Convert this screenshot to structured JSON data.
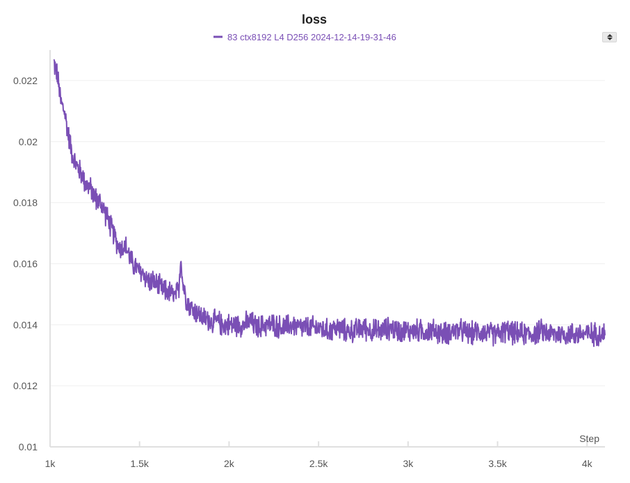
{
  "chart_data": {
    "type": "line",
    "title": "loss",
    "xlabel": "Step",
    "ylabel": "",
    "xlim": [
      1000,
      4100
    ],
    "ylim": [
      0.01,
      0.023
    ],
    "x_ticks": [
      1000,
      1500,
      2000,
      2500,
      3000,
      3500,
      4000
    ],
    "x_tick_labels": [
      "1k",
      "1.5k",
      "2k",
      "2.5k",
      "3k",
      "3.5k",
      "4k"
    ],
    "y_ticks": [
      0.01,
      0.012,
      0.014,
      0.016,
      0.018,
      0.02,
      0.022
    ],
    "y_tick_labels": [
      "0.01",
      "0.012",
      "0.014",
      "0.016",
      "0.018",
      "0.02",
      "0.022"
    ],
    "grid": true,
    "legend_position": "top-center",
    "series": [
      {
        "name": "83 ctx8192 L4 D256 2024-12-14-19-31-46",
        "color": "#7a4fb5",
        "x": [
          1020,
          1040,
          1060,
          1080,
          1100,
          1120,
          1140,
          1160,
          1180,
          1200,
          1220,
          1240,
          1260,
          1280,
          1300,
          1320,
          1340,
          1360,
          1380,
          1400,
          1420,
          1440,
          1460,
          1480,
          1500,
          1520,
          1540,
          1560,
          1580,
          1600,
          1620,
          1640,
          1660,
          1680,
          1700,
          1720,
          1730,
          1740,
          1760,
          1780,
          1800,
          1820,
          1840,
          1860,
          1880,
          1900,
          1920,
          1940,
          1960,
          1980,
          2000,
          2040,
          2080,
          2120,
          2160,
          2200,
          2250,
          2300,
          2350,
          2400,
          2450,
          2500,
          2550,
          2600,
          2650,
          2700,
          2750,
          2800,
          2850,
          2900,
          2950,
          3000,
          3050,
          3100,
          3150,
          3200,
          3250,
          3300,
          3350,
          3400,
          3450,
          3500,
          3550,
          3600,
          3650,
          3700,
          3750,
          3800,
          3850,
          3900,
          3950,
          4000,
          4050,
          4100
        ],
        "y": [
          0.0226,
          0.0222,
          0.0213,
          0.021,
          0.0203,
          0.0197,
          0.0193,
          0.0191,
          0.0189,
          0.0186,
          0.0185,
          0.0183,
          0.0181,
          0.018,
          0.0178,
          0.0175,
          0.0172,
          0.0169,
          0.0166,
          0.0165,
          0.0166,
          0.0163,
          0.016,
          0.0159,
          0.0157,
          0.0157,
          0.0155,
          0.0154,
          0.0154,
          0.0153,
          0.0152,
          0.0151,
          0.0151,
          0.015,
          0.0149,
          0.0152,
          0.0163,
          0.0154,
          0.0149,
          0.0146,
          0.0145,
          0.0144,
          0.0143,
          0.0142,
          0.0142,
          0.0141,
          0.0141,
          0.0141,
          0.014,
          0.014,
          0.014,
          0.014,
          0.014,
          0.0141,
          0.0139,
          0.014,
          0.014,
          0.0139,
          0.014,
          0.0139,
          0.0139,
          0.0139,
          0.0138,
          0.0139,
          0.0138,
          0.0138,
          0.0139,
          0.0138,
          0.0138,
          0.0139,
          0.0138,
          0.0138,
          0.0138,
          0.0138,
          0.0138,
          0.0137,
          0.0138,
          0.0138,
          0.0137,
          0.0138,
          0.0137,
          0.0137,
          0.0138,
          0.0137,
          0.0137,
          0.0137,
          0.0138,
          0.0137,
          0.0137,
          0.0137,
          0.0137,
          0.0137,
          0.0137,
          0.0137
        ],
        "noise_amplitude": 0.0003
      }
    ]
  }
}
